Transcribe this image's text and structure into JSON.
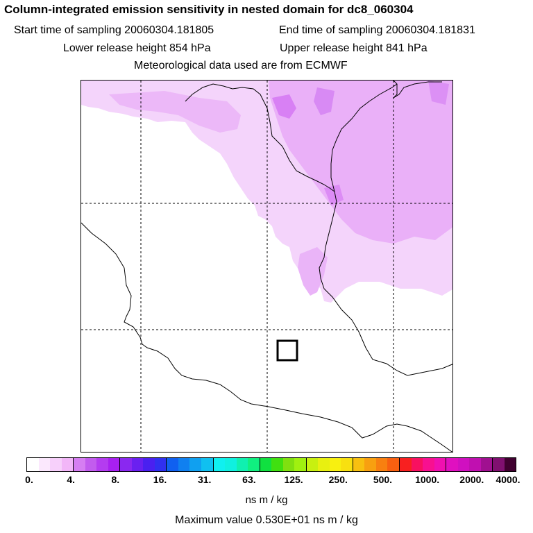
{
  "title": "Column-integrated emission sensitivity in nested domain for dc8_060304",
  "sampling": {
    "start": "Start time of sampling 20060304.181805",
    "end": "End time of sampling 20060304.181831"
  },
  "release": {
    "lower": "Lower release height  854 hPa",
    "upper": "Upper release height  841 hPa"
  },
  "met": "Meteorological data used are from ECMWF",
  "colorbar": {
    "labels": [
      "0.",
      "4.",
      "8.",
      "16.",
      "31.",
      "63.",
      "125.",
      "250.",
      "500.",
      "1000.",
      "2000.",
      "4000."
    ],
    "colors": [
      "#ffffff",
      "#fbe8fd",
      "#f7d0fb",
      "#f2b6f8",
      "#d67ef2",
      "#c25cee",
      "#b43cf0",
      "#a820f0",
      "#8a28f0",
      "#6a20f0",
      "#4a20f0",
      "#3030f0",
      "#1060f0",
      "#1080f0",
      "#10a0f0",
      "#10c0f0",
      "#10f0f0",
      "#10f0e0",
      "#10f0b0",
      "#10f080",
      "#10e040",
      "#40e010",
      "#80e010",
      "#a0f010",
      "#c8f010",
      "#e8f010",
      "#f8f010",
      "#f8e010",
      "#f8c010",
      "#f8a010",
      "#f88010",
      "#f86010",
      "#f82020",
      "#f81060",
      "#f81090",
      "#f010b0",
      "#e010c0",
      "#d010c0",
      "#c010b0",
      "#a01090",
      "#801070",
      "#400030"
    ],
    "unit": "ns m / kg"
  },
  "max_value": "Maximum value  0.530E+01 ns m / kg",
  "colors": {
    "sensitivity_light": "#f0c8fa",
    "sensitivity_mid": "#e49af6",
    "sensitivity_dark": "#c04ef0"
  }
}
